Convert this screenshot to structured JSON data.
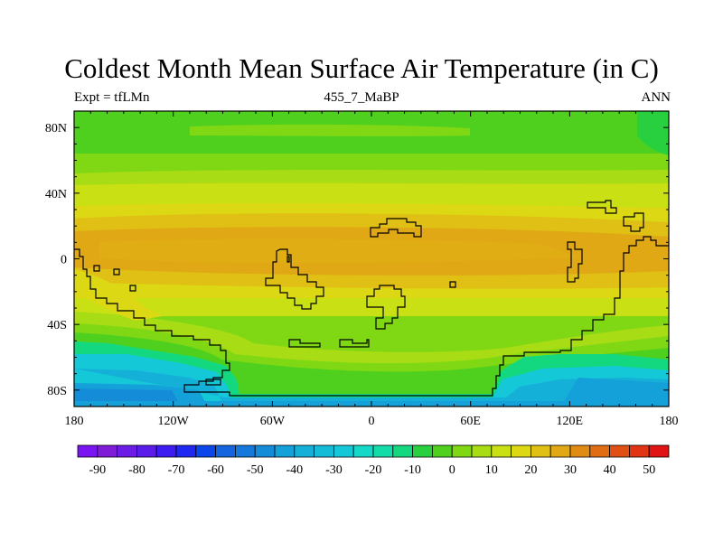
{
  "title": "Coldest Month Mean Surface Air Temperature (in C)",
  "subtitle_left": "Expt = tfLMn",
  "subtitle_center": "455_7_MaBP",
  "subtitle_right": "ANN",
  "map": {
    "projection": "cylindrical-equidistant",
    "lon_range": [
      -180,
      180
    ],
    "lat_range": [
      -90,
      90
    ],
    "lon_ticks": [
      {
        "value": -180,
        "label": "180"
      },
      {
        "value": -120,
        "label": "120W"
      },
      {
        "value": -60,
        "label": "60W"
      },
      {
        "value": 0,
        "label": "0"
      },
      {
        "value": 60,
        "label": "60E"
      },
      {
        "value": 120,
        "label": "120E"
      },
      {
        "value": 180,
        "label": "180"
      }
    ],
    "lat_ticks": [
      {
        "value": 80,
        "label": "80N"
      },
      {
        "value": 40,
        "label": "40N"
      },
      {
        "value": 0,
        "label": "0"
      },
      {
        "value": -40,
        "label": "40S"
      },
      {
        "value": -80,
        "label": "80S"
      }
    ],
    "continent_outline": "black",
    "fill_type": "filled-contour"
  },
  "colorbar": {
    "levels": [
      -95,
      -90,
      -85,
      -80,
      -75,
      -70,
      -65,
      -60,
      -55,
      -50,
      -45,
      -40,
      -35,
      -30,
      -25,
      -20,
      -15,
      -10,
      -5,
      0,
      5,
      10,
      15,
      20,
      25,
      30,
      35,
      40,
      45,
      50,
      55
    ],
    "labels": [
      {
        "value": -90,
        "label": "-90"
      },
      {
        "value": -80,
        "label": "-80"
      },
      {
        "value": -70,
        "label": "-70"
      },
      {
        "value": -60,
        "label": "-60"
      },
      {
        "value": -50,
        "label": "-50"
      },
      {
        "value": -40,
        "label": "-40"
      },
      {
        "value": -30,
        "label": "-30"
      },
      {
        "value": -20,
        "label": "-20"
      },
      {
        "value": -10,
        "label": "-10"
      },
      {
        "value": 0,
        "label": "0"
      },
      {
        "value": 10,
        "label": "10"
      },
      {
        "value": 20,
        "label": "20"
      },
      {
        "value": 30,
        "label": "30"
      },
      {
        "value": 40,
        "label": "40"
      },
      {
        "value": 50,
        "label": "50"
      }
    ],
    "colors": [
      "#7a14f0",
      "#7e1cd8",
      "#6c1ce4",
      "#5a1ce8",
      "#3c1cf0",
      "#1e28f0",
      "#0a46e8",
      "#1464e0",
      "#1478dc",
      "#148cd8",
      "#14a0d8",
      "#14b0d8",
      "#14bcd8",
      "#14c8d8",
      "#14d8c8",
      "#14dca8",
      "#14d880",
      "#28d040",
      "#50d01e",
      "#80d814",
      "#a8dc14",
      "#c8e014",
      "#dcd814",
      "#e0c014",
      "#e0a814",
      "#e08c14",
      "#e06c14",
      "#e05014",
      "#e03414",
      "#e01414"
    ]
  }
}
